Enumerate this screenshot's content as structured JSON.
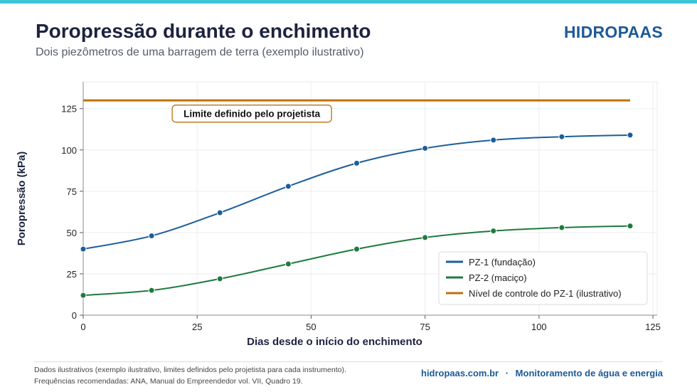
{
  "header": {
    "title": "Poropressão durante o enchimento",
    "subtitle": "Dois piezômetros de uma barragem de terra (exemplo ilustrativo)",
    "brand": "HIDROPAAS"
  },
  "chart_data": {
    "type": "line",
    "xlabel": "Dias desde o início do enchimento",
    "ylabel": "Poropressão (kPa)",
    "xlim": [
      0,
      125
    ],
    "ylim": [
      0,
      140
    ],
    "xticks": [
      0,
      25,
      50,
      75,
      100,
      125
    ],
    "yticks": [
      0,
      25,
      50,
      75,
      100,
      125
    ],
    "grid": true,
    "legend_position": "bottom-right",
    "x": [
      0,
      15,
      30,
      45,
      60,
      75,
      90,
      105,
      120
    ],
    "series": [
      {
        "name": "PZ-1 (fundação)",
        "color": "#1b5e9b",
        "values": [
          40,
          48,
          62,
          78,
          92,
          101,
          106,
          108,
          109
        ]
      },
      {
        "name": "PZ-2 (maciço)",
        "color": "#1e7a3e",
        "values": [
          12,
          15,
          22,
          31,
          40,
          47,
          51,
          53,
          54
        ]
      }
    ],
    "reference_line": {
      "name": "Nível de controle do PZ-1 (ilustrativo)",
      "color": "#c0700f",
      "y": 130,
      "x_range": [
        0,
        120
      ]
    },
    "annotation": {
      "text": "Limite definido pelo projetista",
      "x": 37,
      "y": 122
    }
  },
  "footer": {
    "note_line1": "Dados ilustrativos (exemplo ilustrativo, limites definidos pelo projetista para cada instrumento).",
    "note_line2": "Frequências recomendadas: ANA, Manual do Empreendedor vol. VII, Quadro 19.",
    "site": "hidropaas.com.br",
    "separator": "·",
    "tagline": "Monitoramento de água e energia"
  }
}
